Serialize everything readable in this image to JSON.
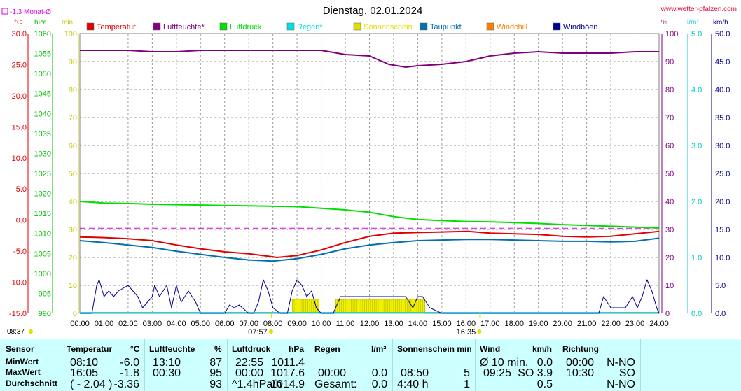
{
  "chart_data": {
    "type": "line",
    "title": "Dienstag, 02.01.2024",
    "source": "www.wetter-pfalzen.com",
    "monthly_avg_label": "-1.3 Monat-Ø",
    "axes_units": {
      "temp": "°C",
      "pressure": "hPa",
      "sun": "min",
      "humidity": "%",
      "rain": "l/m²",
      "wind": "km/h"
    },
    "ylim": {
      "temp": [
        -15,
        30
      ],
      "pressure": [
        990,
        1060
      ],
      "sun": [
        0,
        100
      ],
      "humidity": [
        0,
        100
      ],
      "rain": [
        0,
        5
      ],
      "wind": [
        0,
        50
      ]
    },
    "temp_ticks": [
      "30.0",
      "25.0",
      "20.0",
      "15.0",
      "10.0",
      "5.0",
      "0.0",
      "-5.0",
      "-10.0",
      "-15.0"
    ],
    "pressure_ticks": [
      "1060",
      "1055",
      "1050",
      "1045",
      "1040",
      "1035",
      "1030",
      "1025",
      "1020",
      "1015",
      "1010",
      "1005",
      "1000",
      "995",
      "990"
    ],
    "sun_ticks": [
      "100",
      "90",
      "80",
      "70",
      "60",
      "50",
      "40",
      "30",
      "20",
      "10",
      "0"
    ],
    "humidity_ticks": [
      "100",
      "90",
      "80",
      "70",
      "60",
      "50",
      "40",
      "30",
      "20",
      "10",
      "0"
    ],
    "rain_ticks": [
      "5.0",
      "4.0",
      "3.0",
      "2.0",
      "1.0",
      "0.0"
    ],
    "wind_ticks": [
      "50.0",
      "45.0",
      "40.0",
      "35.0",
      "30.0",
      "25.0",
      "20.0",
      "15.0",
      "10.0",
      "5.0",
      "0.0"
    ],
    "x_ticks": [
      "00:00",
      "01:00",
      "02:00",
      "03:00",
      "04:00",
      "05:00",
      "06:00",
      "07:00",
      "08:00",
      "09:00",
      "10:00",
      "11:00",
      "12:00",
      "13:00",
      "14:00",
      "15:00",
      "16:00",
      "17:00",
      "18:00",
      "19:00",
      "20:00",
      "21:00",
      "22:00",
      "23:00",
      "24:00"
    ],
    "sunrise": "07:57",
    "sunset": "16:35",
    "bottom_left_time": "08:37",
    "legend": [
      {
        "name": "Temperatur",
        "color": "#e00000"
      },
      {
        "name": "Luftfeuchte*",
        "color": "#800080"
      },
      {
        "name": "Luftdruck",
        "color": "#00e000"
      },
      {
        "name": "Regen*",
        "color": "#00e0e0"
      },
      {
        "name": "Sonnenschein",
        "color": "#e0e000"
      },
      {
        "name": "Taupunkt",
        "color": "#0070b0"
      },
      {
        "name": "Windchill",
        "color": "#ff8000"
      },
      {
        "name": "Windböen",
        "color": "#000090"
      }
    ],
    "monthly_avg_temp": -1.3,
    "series": [
      {
        "name": "Temperatur",
        "axis": "temp",
        "color": "#e00000",
        "x": [
          0,
          1,
          2,
          3,
          4,
          5,
          6,
          7,
          8,
          8.17,
          9,
          10,
          11,
          12,
          13,
          14,
          15,
          16,
          16.08,
          17,
          18,
          19,
          20,
          21,
          22,
          23,
          24
        ],
        "y": [
          -2.7,
          -2.8,
          -3.0,
          -3.3,
          -4.0,
          -4.6,
          -5.1,
          -5.4,
          -5.9,
          -6.0,
          -5.7,
          -4.8,
          -3.6,
          -2.6,
          -2.1,
          -2.0,
          -1.9,
          -1.8,
          -1.8,
          -2.1,
          -2.2,
          -2.3,
          -2.6,
          -2.7,
          -2.6,
          -2.2,
          -1.8
        ]
      },
      {
        "name": "Taupunkt",
        "axis": "temp",
        "color": "#0070b0",
        "x": [
          0,
          1,
          2,
          3,
          4,
          5,
          6,
          7,
          8,
          9,
          10,
          11,
          12,
          13,
          14,
          15,
          16,
          17,
          18,
          19,
          20,
          21,
          22,
          23,
          24
        ],
        "y": [
          -3.3,
          -3.6,
          -4.0,
          -4.4,
          -5.0,
          -5.5,
          -6.0,
          -6.4,
          -6.6,
          -6.2,
          -5.5,
          -4.6,
          -4.0,
          -3.6,
          -3.3,
          -3.2,
          -3.1,
          -3.1,
          -3.2,
          -3.3,
          -3.4,
          -3.4,
          -3.5,
          -3.4,
          -2.9
        ]
      },
      {
        "name": "Luftfeuchte*",
        "axis": "humidity",
        "color": "#800080",
        "x": [
          0,
          1,
          2,
          3,
          4,
          5,
          6,
          7,
          8,
          9,
          10,
          11,
          12,
          12.8,
          13.5,
          14,
          15,
          16,
          17,
          18,
          19,
          20,
          21,
          22,
          23,
          24
        ],
        "y": [
          94,
          94,
          94,
          93.5,
          93.5,
          94,
          94,
          94,
          94,
          94,
          94,
          92.5,
          92,
          89,
          88,
          88.5,
          89,
          90,
          92,
          93,
          93.5,
          93,
          93,
          93,
          93.5,
          93.5
        ]
      },
      {
        "name": "Luftdruck",
        "axis": "pressure",
        "color": "#00e000",
        "x": [
          0,
          1,
          2,
          3,
          4,
          5,
          6,
          7,
          8,
          9,
          10,
          11,
          12,
          13,
          14,
          15,
          16,
          17,
          18,
          19,
          20,
          21,
          22,
          23,
          24
        ],
        "y": [
          1018.0,
          1017.6,
          1017.5,
          1017.3,
          1017.2,
          1017.1,
          1017.0,
          1016.9,
          1016.8,
          1016.7,
          1016.3,
          1015.9,
          1015.3,
          1014.2,
          1013.5,
          1013.2,
          1013.0,
          1012.9,
          1012.7,
          1012.5,
          1012.2,
          1012.0,
          1011.8,
          1011.6,
          1011.4
        ]
      },
      {
        "name": "Windböen",
        "axis": "wind",
        "color": "#000090",
        "x": [
          0,
          0.5,
          0.7,
          0.8,
          1,
          1.2,
          1.4,
          1.6,
          2,
          2.4,
          2.6,
          3,
          3.1,
          3.3,
          3.6,
          3.8,
          4,
          4.2,
          4.5,
          4.8,
          5,
          5.5,
          6,
          6.2,
          6.4,
          6.6,
          7,
          7.2,
          7.4,
          7.6,
          7.8,
          8,
          8.3,
          8.6,
          8.8,
          9,
          9.2,
          9.4,
          9.6,
          9.8,
          10,
          10.5,
          10.8,
          11,
          11.5,
          12,
          12.5,
          13,
          13.5,
          13.8,
          14,
          14.2,
          14.5,
          15,
          20,
          21.5,
          21.7,
          22,
          22.3,
          22.6,
          22.9,
          23.1,
          23.3,
          23.5,
          23.7,
          23.9,
          24
        ],
        "y": [
          0,
          0,
          5,
          6,
          3,
          4,
          3,
          4,
          5,
          3,
          1,
          3,
          5,
          3,
          5,
          1,
          5,
          2,
          4,
          2,
          0,
          0,
          0,
          1.5,
          1,
          1.5,
          0,
          0,
          2,
          6,
          4,
          1,
          0,
          0,
          4,
          6,
          5,
          3,
          4,
          1,
          0,
          0,
          3,
          3,
          3,
          3,
          3,
          3,
          3,
          1,
          3,
          3,
          1,
          0,
          0,
          0,
          3,
          1,
          1,
          1,
          3,
          1,
          3,
          6,
          4,
          1,
          0
        ]
      }
    ],
    "sunshine_bars": [
      {
        "from": 8.8,
        "to": 9.9,
        "value": 5
      },
      {
        "from": 10.6,
        "to": 14.3,
        "value": 5
      }
    ]
  },
  "stats": {
    "headers": {
      "sensor": "Sensor",
      "temp": "Temperatur",
      "temp_unit": "°C",
      "hum": "Luftfeuchte",
      "hum_unit": "%",
      "press": "Luftdruck",
      "press_unit": "hPa",
      "rain": "Regen",
      "rain_unit": "l/m²",
      "sun": "Sonnenschein min",
      "wind": "Wind",
      "wind_unit": "km/h",
      "dir": "Richtung"
    },
    "rows": [
      {
        "label": "MinWert",
        "temp_time": "08:10",
        "temp_val": "-6.0",
        "hum_time": "13:10",
        "hum_val": "87",
        "press_time": "22:55",
        "press_val": "1011.4",
        "rain_time": "",
        "rain_val": "",
        "sun_time": "",
        "sun_val": "",
        "wind_time": "Ø 10 min.",
        "wind_val": "0.0",
        "dir_time": "00:00",
        "dir_val": "N-NO"
      },
      {
        "label": "MaxWert",
        "temp_time": "16:05",
        "temp_val": "-1.8",
        "hum_time": "00:30",
        "hum_val": "95",
        "press_time": "00:00",
        "press_val": "1017.6",
        "rain_time": "00:00",
        "rain_val": "0.0",
        "sun_time": "08:50",
        "sun_val": "5",
        "wind_time": "09:25",
        "wind_val": "SO 3.9",
        "dir_time": "10:30",
        "dir_val": "SO"
      },
      {
        "label": "Durchschnitt",
        "temp_time": "( - 2.04 )",
        "temp_val": "-3.36",
        "hum_time": "",
        "hum_val": "93",
        "press_time": "^1.4hPa/h",
        "press_val": "1014.9",
        "rain_time": "Gesamt:",
        "rain_val": "0.0",
        "sun_time": "4:40 h",
        "sun_val": "1",
        "wind_time": "",
        "wind_val": "0.5",
        "dir_time": "",
        "dir_val": "N-NO"
      }
    ]
  }
}
